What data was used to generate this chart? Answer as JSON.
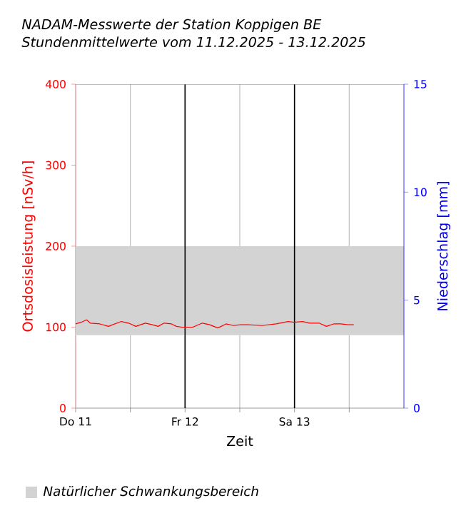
{
  "chart_data": {
    "type": "line",
    "title": "NADAM-Messwerte der Station Koppigen BE",
    "subtitle": "Stundenmittelwerte vom 11.12.2025 - 13.12.2025",
    "xlabel": "Zeit",
    "ylabel": "Ortsdosisleistung [nSv/h]",
    "y2label": "Niederschlag [mm]",
    "x": [
      "2025-12-11T00:00",
      "2025-12-11T01:12",
      "2025-12-11T02:24",
      "2025-12-11T03:12",
      "2025-12-11T05:18",
      "2025-12-11T07:12",
      "2025-12-11T10:00",
      "2025-12-11T11:36",
      "2025-12-11T13:12",
      "2025-12-11T15:18",
      "2025-12-11T16:48",
      "2025-12-11T18:06",
      "2025-12-11T19:24",
      "2025-12-11T21:00",
      "2025-12-11T22:06",
      "2025-12-11T23:18",
      "2025-12-12T01:42",
      "2025-12-12T03:48",
      "2025-12-12T05:24",
      "2025-12-12T07:12",
      "2025-12-12T09:00",
      "2025-12-12T10:36",
      "2025-12-12T12:12",
      "2025-12-12T13:48",
      "2025-12-12T16:54",
      "2025-12-12T20:00",
      "2025-12-12T22:36",
      "2025-12-12T23:54",
      "2025-12-13T01:48",
      "2025-12-13T03:18",
      "2025-12-13T05:24",
      "2025-12-13T07:00",
      "2025-12-13T08:36",
      "2025-12-13T10:06",
      "2025-12-13T11:42",
      "2025-12-13T13:00"
    ],
    "series": [
      {
        "color": "#ff0000",
        "values": [
          104,
          106,
          109,
          105,
          104,
          101,
          107,
          105,
          101,
          105,
          103,
          101,
          105,
          104,
          101,
          100,
          100,
          105,
          103,
          99,
          104,
          102,
          103,
          103,
          102,
          104,
          107,
          106,
          107,
          105,
          105,
          101,
          104,
          104,
          103,
          103
        ]
      }
    ],
    "xlim": [
      "2025-12-11T00:00",
      "2025-12-14T00:00"
    ],
    "xticks": [
      {
        "value": "2025-12-11T00:00",
        "label": "Do 11"
      },
      {
        "value": "2025-12-11T12:00",
        "label": null
      },
      {
        "value": "2025-12-12T00:00",
        "label": "Fr 12"
      },
      {
        "value": "2025-12-12T12:00",
        "label": null
      },
      {
        "value": "2025-12-13T00:00",
        "label": "Sa 13"
      },
      {
        "value": "2025-12-13T12:00",
        "label": null
      }
    ],
    "ylim": [
      0,
      400
    ],
    "yticks": [
      0,
      100,
      200,
      300,
      400
    ],
    "y2lim": [
      0,
      15
    ],
    "y2ticks": [
      0,
      5,
      10,
      15
    ],
    "bands": [
      {
        "axis": "y",
        "from": 90,
        "to": 200,
        "label": "Natürlicher Schwankungsbereich",
        "color": "#d3d3d3"
      }
    ],
    "grid": "x",
    "legend": "bottom",
    "marker": "none",
    "line_style": "solid"
  }
}
